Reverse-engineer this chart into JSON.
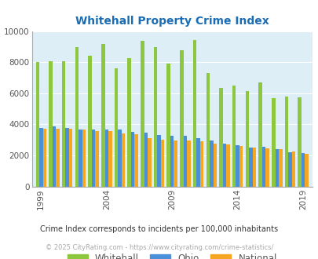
{
  "title": "Whitehall Property Crime Index",
  "years": [
    1999,
    2000,
    2001,
    2002,
    2003,
    2004,
    2005,
    2006,
    2007,
    2008,
    2009,
    2010,
    2011,
    2012,
    2013,
    2014,
    2015,
    2016,
    2017,
    2018,
    2019,
    2020
  ],
  "whitehall": [
    8000,
    8050,
    8050,
    8950,
    8400,
    9150,
    7600,
    8250,
    9350,
    8950,
    7900,
    8750,
    9400,
    7300,
    6350,
    6500,
    6150,
    6700,
    5700,
    5800,
    5750,
    0
  ],
  "ohio": [
    3750,
    3850,
    3750,
    3650,
    3650,
    3650,
    3650,
    3500,
    3450,
    3300,
    3250,
    3250,
    3100,
    2950,
    2750,
    2650,
    2500,
    2550,
    2400,
    2200,
    2150,
    0
  ],
  "national": [
    3700,
    3700,
    3700,
    3650,
    3550,
    3550,
    3400,
    3350,
    3100,
    3000,
    2950,
    2950,
    2900,
    2750,
    2700,
    2600,
    2500,
    2450,
    2400,
    2250,
    2100,
    0
  ],
  "whitehall_color": "#8dc63f",
  "ohio_color": "#4a90d9",
  "national_color": "#f5a623",
  "bg_color": "#ddeef6",
  "ylim": [
    0,
    10000
  ],
  "yticks": [
    0,
    2000,
    4000,
    6000,
    8000,
    10000
  ],
  "xtick_years": [
    1999,
    2004,
    2009,
    2014,
    2019
  ],
  "subtitle": "Crime Index corresponds to incidents per 100,000 inhabitants",
  "footer": "© 2025 CityRating.com - https://www.cityrating.com/crime-statistics/",
  "legend_labels": [
    "Whitehall",
    "Ohio",
    "National"
  ]
}
